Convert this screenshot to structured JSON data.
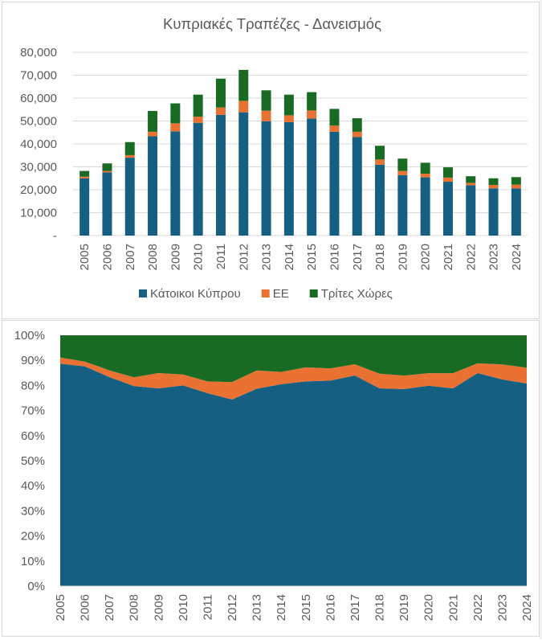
{
  "chart_data": [
    {
      "type": "bar",
      "stacked": true,
      "title": "Κυπριακές Τραπέζες - Δανεισμός",
      "xlabel": "",
      "ylabel": "",
      "categories": [
        "2005",
        "2006",
        "2007",
        "2008",
        "2009",
        "2010",
        "2011",
        "2012",
        "2013",
        "2014",
        "2015",
        "2016",
        "2017",
        "2018",
        "2019",
        "2020",
        "2021",
        "2022",
        "2023",
        "2024"
      ],
      "series": [
        {
          "name": "Κάτοικοι Κύπρου",
          "color": "#156082",
          "values": [
            25000,
            27600,
            34000,
            43400,
            45500,
            49200,
            52700,
            53800,
            49900,
            49500,
            51100,
            45300,
            43000,
            30900,
            26400,
            25400,
            23500,
            22000,
            20600,
            20600
          ]
        },
        {
          "name": "ΕΕ",
          "color": "#E97132",
          "values": [
            700,
            600,
            1100,
            1900,
            3500,
            2700,
            3200,
            5000,
            4600,
            3000,
            3500,
            2700,
            2300,
            2300,
            1800,
            1600,
            1800,
            1000,
            1500,
            1600
          ]
        },
        {
          "name": "Τρίτες Χώρες",
          "color": "#196B24",
          "values": [
            2500,
            3300,
            5700,
            9100,
            8700,
            9600,
            12600,
            13500,
            8900,
            9000,
            8000,
            7300,
            5900,
            6000,
            5400,
            4800,
            4500,
            2900,
            2900,
            3300
          ]
        }
      ],
      "ylim": [
        0,
        80000
      ],
      "yticks": [
        0,
        10000,
        20000,
        30000,
        40000,
        50000,
        60000,
        70000,
        80000
      ],
      "ytick_labels": [
        "-",
        "10,000",
        "20,000",
        "30,000",
        "40,000",
        "50,000",
        "60,000",
        "70,000",
        "80,000"
      ],
      "grid": true,
      "legend_position": "bottom"
    },
    {
      "type": "area",
      "stacked_percent": true,
      "title": "",
      "xlabel": "",
      "ylabel": "",
      "categories": [
        "2005",
        "2006",
        "2007",
        "2008",
        "2009",
        "2010",
        "2011",
        "2012",
        "2013",
        "2014",
        "2015",
        "2016",
        "2017",
        "2018",
        "2019",
        "2020",
        "2021",
        "2022",
        "2023",
        "2024"
      ],
      "series_ref": "same as first chart, normalized to 100%",
      "ylim": [
        0,
        100
      ],
      "yticks": [
        0,
        10,
        20,
        30,
        40,
        50,
        60,
        70,
        80,
        90,
        100
      ],
      "ytick_labels": [
        "0%",
        "10%",
        "20%",
        "30%",
        "40%",
        "50%",
        "60%",
        "70%",
        "80%",
        "90%",
        "100%"
      ],
      "grid": false,
      "legend_position": "none"
    }
  ]
}
